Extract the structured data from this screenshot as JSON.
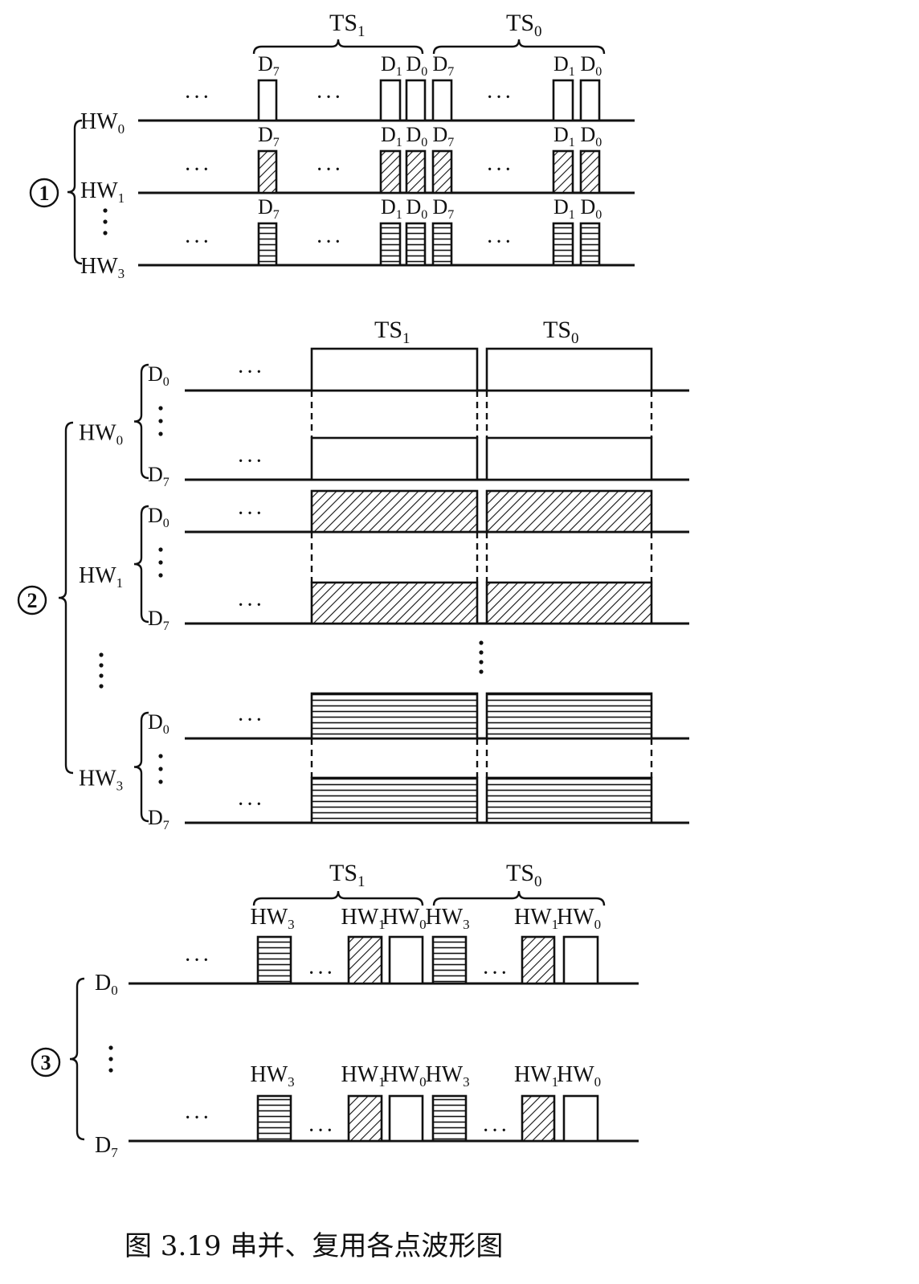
{
  "colors": {
    "ink": "#111111",
    "paper": "#ffffff"
  },
  "fill_patterns": {
    "HW0": "blank",
    "HW1": "diagonal-hatch",
    "HW3": "horizontal-lines"
  },
  "part1": {
    "marker": "①",
    "ts_labels": [
      "TS1",
      "TS0"
    ],
    "rows": [
      {
        "name": "HW0",
        "pattern": "HW0"
      },
      {
        "name": "HW1",
        "pattern": "HW1"
      },
      {
        "name": "HW3",
        "pattern": "HW3"
      }
    ],
    "pulse_labels": [
      "D7",
      "D1",
      "D0",
      "D7",
      "D1",
      "D0"
    ],
    "ellipsis": "···"
  },
  "part2": {
    "marker": "②",
    "ts_labels": [
      "TS1",
      "TS0"
    ],
    "groups": [
      {
        "name": "HW0",
        "bits": [
          "D0",
          "D7"
        ],
        "pattern": "HW0"
      },
      {
        "name": "HW1",
        "bits": [
          "D0",
          "D7"
        ],
        "pattern": "HW1"
      },
      {
        "name": "HW3",
        "bits": [
          "D0",
          "D7"
        ],
        "pattern": "HW3"
      }
    ],
    "ellipsis": "···"
  },
  "part3": {
    "marker": "③",
    "ts_labels": [
      "TS1",
      "TS0"
    ],
    "rows": [
      {
        "name": "D0"
      },
      {
        "name": "D7"
      }
    ],
    "pulse_labels": [
      "HW3",
      "HW1",
      "HW0",
      "HW3",
      "HW1",
      "HW0"
    ],
    "pulse_patterns": [
      "HW3",
      "HW1",
      "HW0",
      "HW3",
      "HW1",
      "HW0"
    ],
    "ellipsis": "···"
  },
  "caption": "图 3.19   串并、复用各点波形图"
}
